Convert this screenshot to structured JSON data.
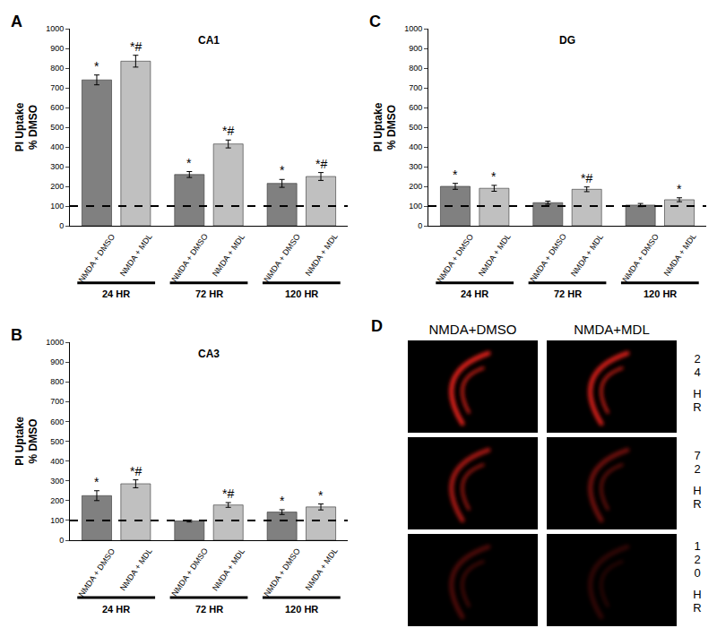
{
  "chart_data": [
    {
      "type": "bar",
      "panel_label": "A",
      "title": "CA1",
      "ylabel": [
        "PI Uptake",
        "% DMSO"
      ],
      "categories": [
        "24 HR",
        "72 HR",
        "120 HR"
      ],
      "series": [
        {
          "name": "NMDA + DMSO",
          "color": "#808080",
          "values": [
            740,
            260,
            215
          ],
          "errors": [
            25,
            15,
            20
          ],
          "significance": [
            "*",
            "*",
            "*"
          ]
        },
        {
          "name": "NMDA + MDL",
          "color": "#c0c0c0",
          "values": [
            835,
            415,
            250
          ],
          "errors": [
            30,
            20,
            20
          ],
          "significance": [
            "*#",
            "*#",
            "*#"
          ]
        }
      ],
      "reference_line": 100,
      "ylim": [
        0,
        1000
      ],
      "yticks": [
        0,
        100,
        200,
        300,
        400,
        500,
        600,
        700,
        800,
        900,
        1000
      ],
      "grid": false
    },
    {
      "type": "bar",
      "panel_label": "B",
      "title": "CA3",
      "ylabel": [
        "PI Uptake",
        "% DMSO"
      ],
      "categories": [
        "24 HR",
        "72 HR",
        "120 HR"
      ],
      "series": [
        {
          "name": "NMDA + DMSO",
          "color": "#808080",
          "values": [
            225,
            97,
            142
          ],
          "errors": [
            25,
            5,
            12
          ],
          "significance": [
            "*",
            null,
            "*"
          ]
        },
        {
          "name": "NMDA + MDL",
          "color": "#c0c0c0",
          "values": [
            285,
            178,
            168
          ],
          "errors": [
            20,
            12,
            15
          ],
          "significance": [
            "*#",
            "*#",
            "*"
          ]
        }
      ],
      "reference_line": 100,
      "ylim": [
        0,
        1000
      ],
      "yticks": [
        0,
        100,
        200,
        300,
        400,
        500,
        600,
        700,
        800,
        900,
        1000
      ],
      "grid": false
    },
    {
      "type": "bar",
      "panel_label": "C",
      "title": "DG",
      "ylabel": [
        "PI Uptake",
        "% DMSO"
      ],
      "categories": [
        "24 HR",
        "72 HR",
        "120 HR"
      ],
      "series": [
        {
          "name": "NMDA + DMSO",
          "color": "#808080",
          "values": [
            200,
            117,
            105
          ],
          "errors": [
            15,
            8,
            8
          ],
          "significance": [
            "*",
            null,
            null
          ]
        },
        {
          "name": "NMDA + MDL",
          "color": "#c0c0c0",
          "values": [
            190,
            185,
            132
          ],
          "errors": [
            15,
            12,
            10
          ],
          "significance": [
            "*",
            "*#",
            "*"
          ]
        }
      ],
      "reference_line": 100,
      "ylim": [
        0,
        1000
      ],
      "yticks": [
        0,
        100,
        200,
        300,
        400,
        500,
        600,
        700,
        800,
        900,
        1000
      ],
      "grid": false
    }
  ],
  "image_panel": {
    "panel_label": "D",
    "columns": [
      "NMDA+DMSO",
      "NMDA+MDL"
    ],
    "rows": [
      "24 HR",
      "72 HR",
      "120 HR"
    ]
  }
}
